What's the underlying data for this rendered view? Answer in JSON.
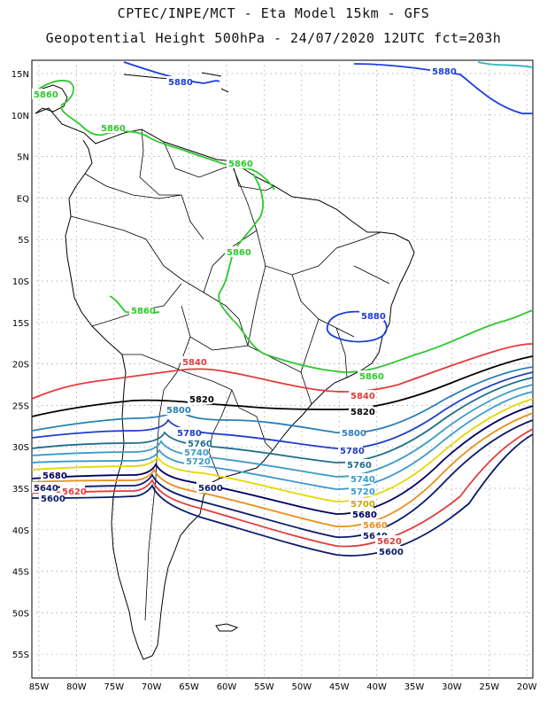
{
  "header": {
    "line1": "CPTEC/INPE/MCT -  Eta Model 15km - GFS",
    "line2": "Geopotential Height 500hPa - 24/07/2020 12UTC fct=203h"
  },
  "axes": {
    "lat_labels": [
      "15N",
      "10N",
      "5N",
      "EQ",
      "5S",
      "10S",
      "15S",
      "20S",
      "25S",
      "30S",
      "35S",
      "40S",
      "45S",
      "50S",
      "55S"
    ],
    "lon_labels": [
      "85W",
      "80W",
      "75W",
      "70W",
      "65W",
      "60W",
      "55W",
      "50W",
      "45W",
      "40W",
      "35W",
      "30W",
      "25W",
      "20W"
    ]
  },
  "contours": [
    {
      "value": "5880",
      "color": "#1b3fd6"
    },
    {
      "value": "5860",
      "color": "#2ec82e"
    },
    {
      "value": "5840",
      "color": "#e23c3c"
    },
    {
      "value": "5820",
      "color": "#000000"
    },
    {
      "value": "5800",
      "color": "#2a7fb6"
    },
    {
      "value": "5780",
      "color": "#1e3fc8"
    },
    {
      "value": "5760",
      "color": "#1e6e8a"
    },
    {
      "value": "5740",
      "color": "#3c9ac8"
    },
    {
      "value": "5720",
      "color": "#3c9ac8"
    },
    {
      "value": "5700",
      "color": "#e6d800"
    },
    {
      "value": "5680",
      "color": "#000060"
    },
    {
      "value": "5660",
      "color": "#e89020"
    },
    {
      "value": "5640",
      "color": "#0a1a6a"
    },
    {
      "value": "5620",
      "color": "#e23c3c"
    },
    {
      "value": "5600",
      "color": "#0a1a6a"
    }
  ],
  "contour_labels": [
    {
      "text": "5880",
      "color": "#1b3fd6"
    },
    {
      "text": "5880",
      "color": "#1b3fd6"
    },
    {
      "text": "5880",
      "color": "#1b3fd6"
    },
    {
      "text": "5860",
      "color": "#2ec82e"
    },
    {
      "text": "5860",
      "color": "#2ec82e"
    },
    {
      "text": "5860",
      "color": "#2ec82e"
    },
    {
      "text": "5860",
      "color": "#2ec82e"
    },
    {
      "text": "5860",
      "color": "#2ec82e"
    },
    {
      "text": "5860",
      "color": "#2ec82e"
    },
    {
      "text": "5840",
      "color": "#e23c3c"
    },
    {
      "text": "5840",
      "color": "#e23c3c"
    },
    {
      "text": "5820",
      "color": "#000000"
    },
    {
      "text": "5820",
      "color": "#000000"
    },
    {
      "text": "5800",
      "color": "#2a7fb6"
    },
    {
      "text": "5800",
      "color": "#2a7fb6"
    },
    {
      "text": "5780",
      "color": "#1e3fc8"
    },
    {
      "text": "5780",
      "color": "#1e3fc8"
    },
    {
      "text": "5760",
      "color": "#1e6e8a"
    },
    {
      "text": "5760",
      "color": "#1e6e8a"
    },
    {
      "text": "5740",
      "color": "#3c9ac8"
    },
    {
      "text": "5740",
      "color": "#3c9ac8"
    },
    {
      "text": "5720",
      "color": "#3c9ac8"
    },
    {
      "text": "5720",
      "color": "#3c9ac8"
    },
    {
      "text": "5700",
      "color": "#c8a800"
    },
    {
      "text": "5680",
      "color": "#000060"
    },
    {
      "text": "5680",
      "color": "#000060"
    },
    {
      "text": "5660",
      "color": "#e89020"
    },
    {
      "text": "5640",
      "color": "#0a1a6a"
    },
    {
      "text": "5640",
      "color": "#0a1a6a"
    },
    {
      "text": "5620",
      "color": "#e23c3c"
    },
    {
      "text": "5620",
      "color": "#e23c3c"
    },
    {
      "text": "5600",
      "color": "#0a1a6a"
    },
    {
      "text": "5600",
      "color": "#0a1a6a"
    },
    {
      "text": "5600",
      "color": "#0a1a6a"
    }
  ]
}
